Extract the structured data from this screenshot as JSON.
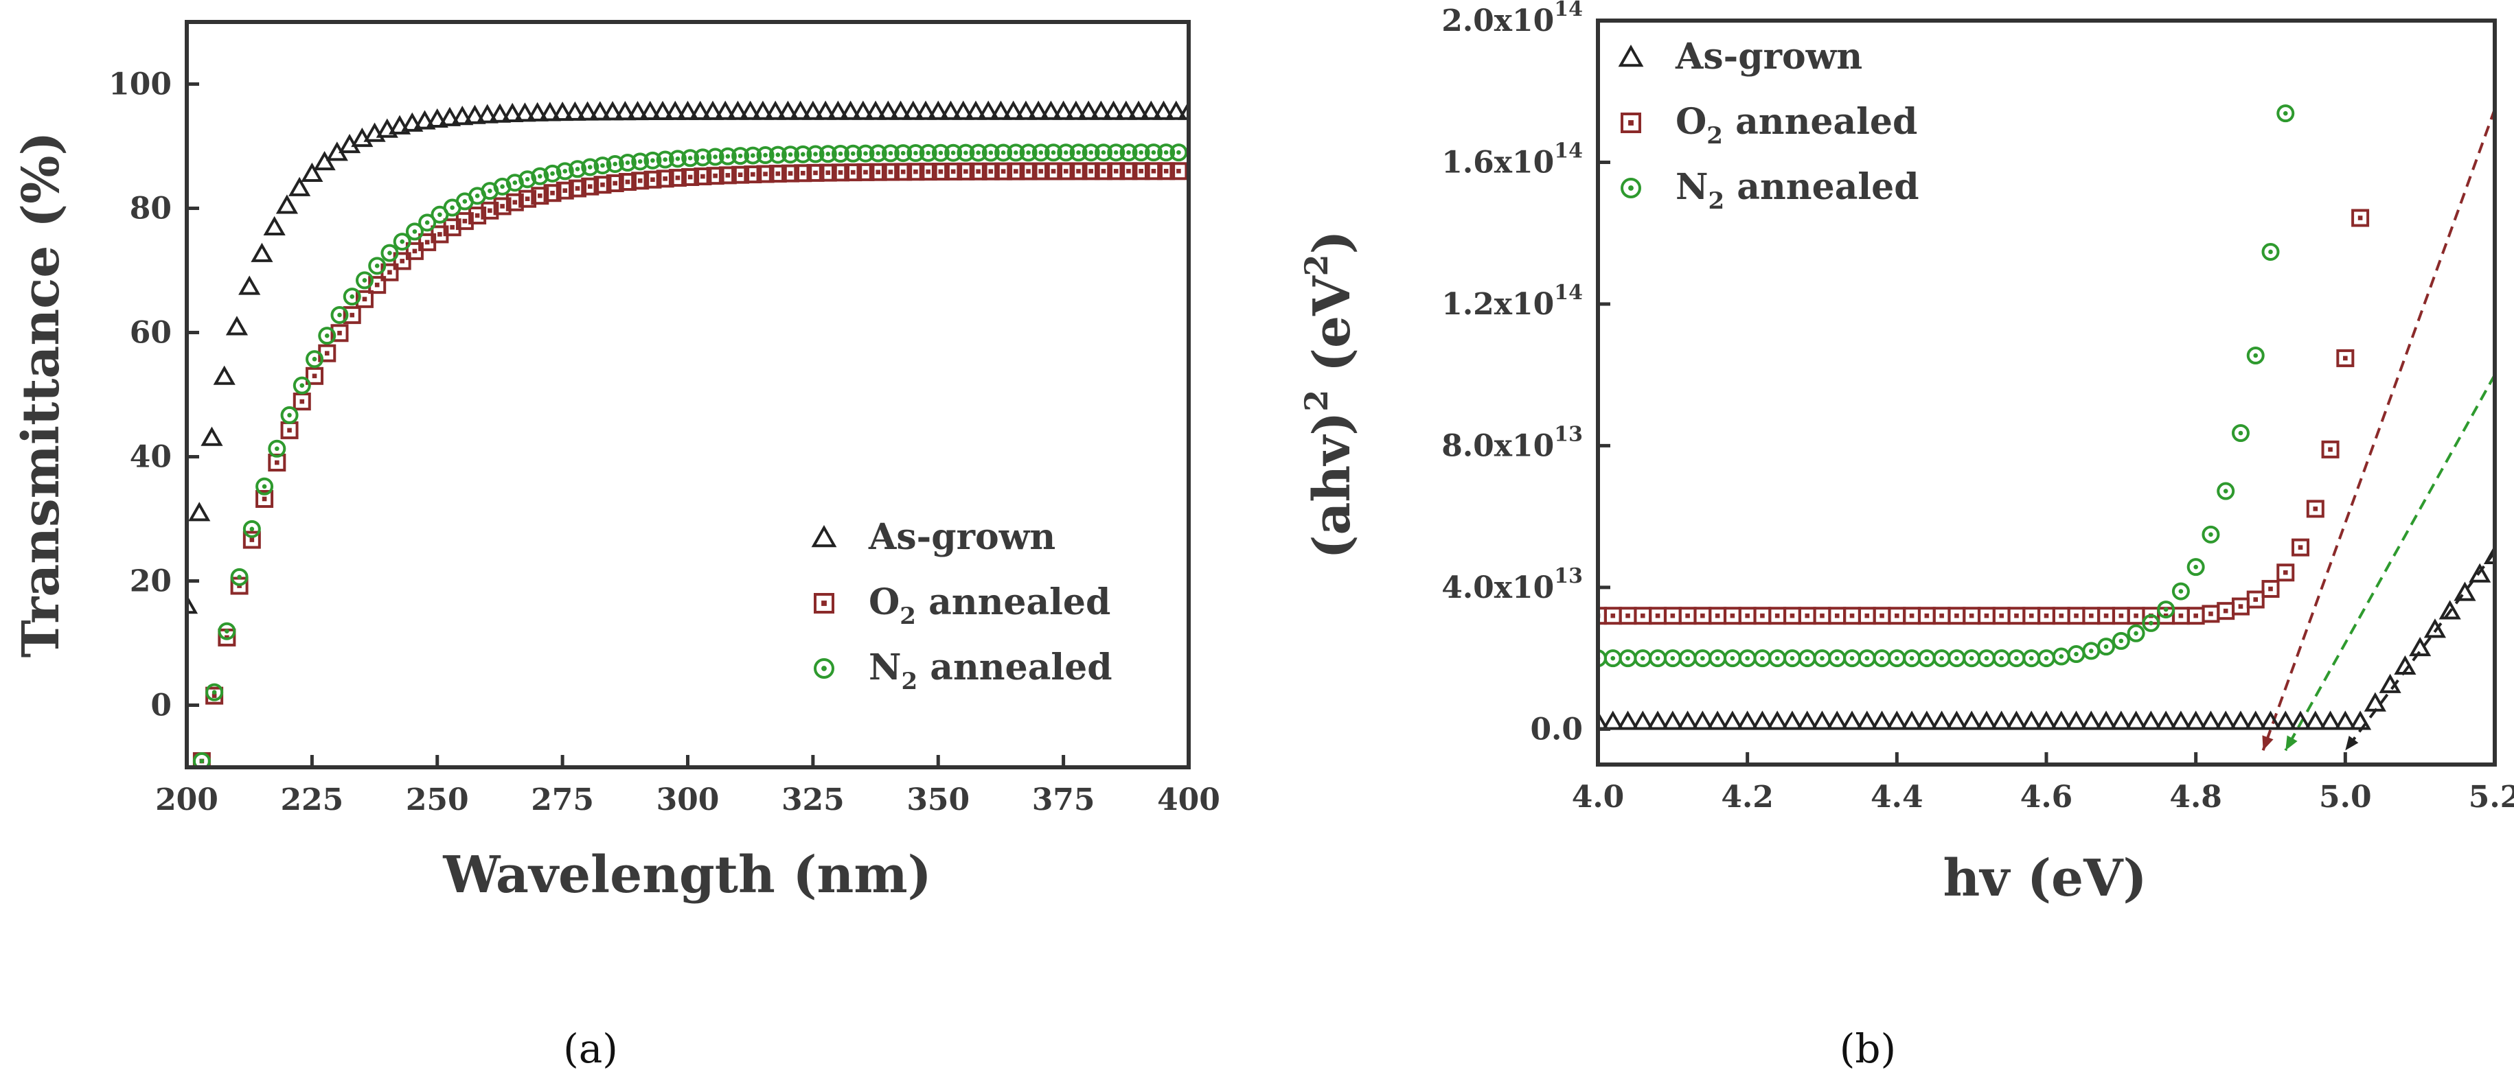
{
  "colors": {
    "as_grown": "#222222",
    "o2": "#8b2a2a",
    "n2": "#2e9a2e",
    "axis": "#333333"
  },
  "chart_data": [
    {
      "panel_label": "(a)",
      "type": "scatter",
      "xlabel": "Wavelength (nm)",
      "ylabel": "Transmittance (%)",
      "xlim": [
        200,
        400
      ],
      "ylim": [
        -10,
        110
      ],
      "xticks": [
        "200",
        "225",
        "250",
        "275",
        "300",
        "325",
        "350",
        "375",
        "400"
      ],
      "yticks": [
        "0",
        "20",
        "40",
        "60",
        "80",
        "100"
      ],
      "legend_position": "bottom-right",
      "series": [
        {
          "name_main": "As-grown",
          "name_sub": "",
          "name_rest": "",
          "marker": "triangle",
          "color_key": "as_grown",
          "model": {
            "kind": "transmittance",
            "plateau": 95.5,
            "start": 16,
            "k": 0.083,
            "x_start": 200
          }
        },
        {
          "name_main": "O",
          "name_sub": "2",
          "name_rest": " annealed",
          "marker": "square",
          "color_key": "o2",
          "model": {
            "kind": "transmittance",
            "plateau": 86,
            "start": -9,
            "k": 0.047,
            "x_start": 203
          }
        },
        {
          "name_main": "N",
          "name_sub": "2",
          "name_rest": " annealed",
          "marker": "circle",
          "color_key": "n2",
          "model": {
            "kind": "transmittance",
            "plateau": 89,
            "start": -9,
            "k": 0.048,
            "x_start": 203
          }
        }
      ]
    },
    {
      "panel_label": "(b)",
      "type": "scatter",
      "xlabel": "hv (eV)",
      "ylabel_main": "(ahv)",
      "ylabel_exp": "2",
      "ylabel_unit_main": " (eV",
      "ylabel_unit_exp": "2",
      "ylabel_close": ")",
      "xlim": [
        4.0,
        5.2
      ],
      "ylim": [
        -10000000000000.0,
        200000000000000.0
      ],
      "xticks": [
        "4.0",
        "4.2",
        "4.4",
        "4.6",
        "4.8",
        "5.0",
        "5.2"
      ],
      "yticks": [
        {
          "value": 0,
          "mantissa": "0.0",
          "exponent": ""
        },
        {
          "value": 40000000000000.0,
          "mantissa": "4.0x10",
          "exponent": "13"
        },
        {
          "value": 80000000000000.0,
          "mantissa": "8.0x10",
          "exponent": "13"
        },
        {
          "value": 120000000000000.0,
          "mantissa": "1.2x10",
          "exponent": "14"
        },
        {
          "value": 160000000000000.0,
          "mantissa": "1.6x10",
          "exponent": "14"
        },
        {
          "value": 200000000000000.0,
          "mantissa": "2.0x10",
          "exponent": "14"
        }
      ],
      "legend_position": "top-left",
      "series": [
        {
          "name_main": "As-grown",
          "name_sub": "",
          "name_rest": "",
          "marker": "triangle",
          "color_key": "as_grown",
          "model": {
            "kind": "absorption",
            "baseline": 2000000000000.0,
            "edge": 5.02,
            "slope": 260000000000000.0,
            "x_end": 5.2
          }
        },
        {
          "name_main": "O",
          "name_sub": "2",
          "name_rest": " annealed",
          "marker": "square",
          "color_key": "o2",
          "model": {
            "kind": "absorption_exp",
            "baseline": 32000000000000.0,
            "amp": 1000000000000.0,
            "rate": 21.5,
            "x_from": 4.8,
            "x_end": 5.2
          }
        },
        {
          "name_main": "N",
          "name_sub": "2",
          "name_rest": " annealed",
          "marker": "circle",
          "color_key": "n2",
          "model": {
            "kind": "absorption_exp",
            "baseline": 20000000000000.0,
            "amp": 1500000000000.0,
            "rate": 14.5,
            "x_from": 4.6,
            "x_end": 5.2
          }
        }
      ],
      "tangent_lines": [
        {
          "color_key": "o2",
          "from": [
            5.2,
            175000000000000.0
          ],
          "to": [
            4.89,
            -6000000000000.0
          ]
        },
        {
          "color_key": "n2",
          "from": [
            5.2,
            100000000000000.0
          ],
          "to": [
            4.92,
            -6000000000000.0
          ]
        },
        {
          "color_key": "as_grown",
          "from": [
            5.2,
            50000000000000.0
          ],
          "to": [
            5.0,
            -6000000000000.0
          ]
        }
      ]
    }
  ]
}
